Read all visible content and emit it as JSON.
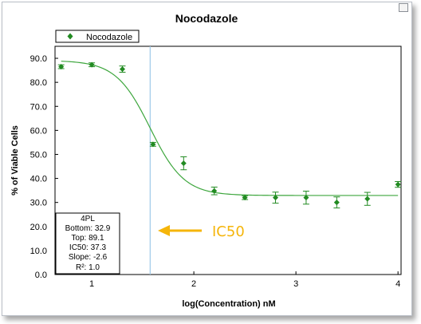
{
  "window": {
    "restore_icon": "window-restore-icon"
  },
  "chart_data": {
    "type": "scatter",
    "title": "Nocodazole",
    "xlabel": "log(Concentration) nM",
    "ylabel": "% of Viable Cells",
    "xlim": [
      0.64,
      4.03
    ],
    "ylim": [
      0,
      95
    ],
    "x_ticks": [
      1,
      2,
      3,
      4
    ],
    "y_ticks": [
      0,
      10,
      20,
      30,
      40,
      50,
      60,
      70,
      80,
      90
    ],
    "x_tick_labels": [
      "1",
      "2",
      "3",
      "4"
    ],
    "y_tick_labels": [
      "0.0",
      "10.0",
      "20.0",
      "30.0",
      "40.0",
      "50.0",
      "60.0",
      "70.0",
      "80.0",
      "90.0"
    ],
    "grid": false,
    "legend_position": "top-left",
    "series": [
      {
        "name": "Nocodazole",
        "color": "#228b22",
        "marker": "diamond",
        "x": [
          0.7,
          1.0,
          1.3,
          1.6,
          1.9,
          2.2,
          2.5,
          2.8,
          3.1,
          3.4,
          3.7,
          4.0
        ],
        "y": [
          86.5,
          87.3,
          85.5,
          54.2,
          46.3,
          34.8,
          32.0,
          32.0,
          32.0,
          30.0,
          31.5,
          37.5
        ],
        "err": [
          0.8,
          0.8,
          1.3,
          0.8,
          2.7,
          1.6,
          0.8,
          2.3,
          2.7,
          2.3,
          2.7,
          1.2
        ]
      }
    ],
    "fit": {
      "model": "4PL",
      "bottom": 32.9,
      "top": 89.1,
      "ic50": 37.3,
      "slope": -2.6,
      "color": "#3da63d"
    },
    "ic50_line": {
      "x": 1.572,
      "color": "#9ec9e8"
    },
    "stats_box": {
      "lines": [
        "4PL",
        "Bottom: 32.9",
        "Top: 89.1",
        "IC50: 37.3",
        "Slope: -2.6",
        "R²: 1.0"
      ]
    },
    "annotation": {
      "text": "IC50",
      "color": "#f5b50a"
    }
  }
}
